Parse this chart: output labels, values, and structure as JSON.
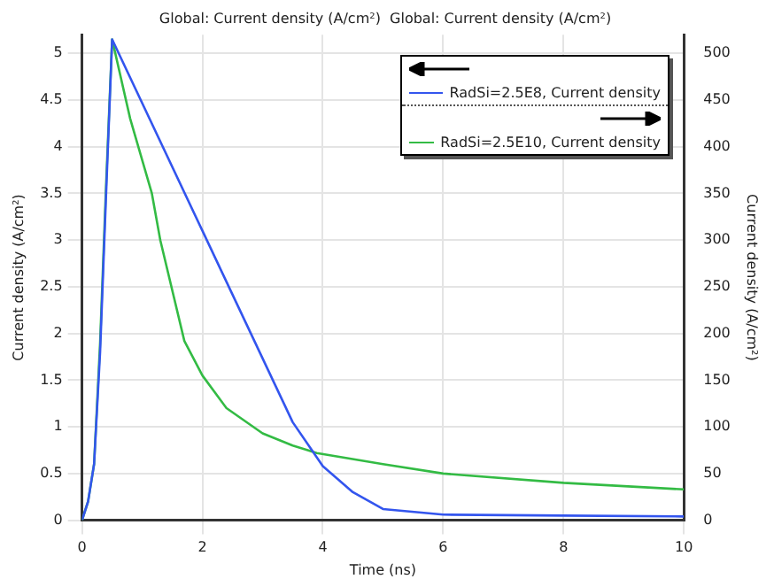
{
  "chart_data": {
    "type": "line",
    "title": "Global: Current density (A/cm²)  Global: Current density (A/cm²)",
    "xlabel": "Time (ns)",
    "ylabel": "Current density (A/cm²)",
    "y2label": "Current density (A/cm²)",
    "xlim": [
      0,
      10
    ],
    "xticks": [
      0,
      2,
      4,
      6,
      8,
      10
    ],
    "ylim": [
      0,
      5.2
    ],
    "yticks": [
      0,
      0.5,
      1,
      1.5,
      2,
      2.5,
      3,
      3.5,
      4,
      4.5,
      5
    ],
    "y2lim": [
      0,
      520
    ],
    "y2ticks": [
      0,
      50,
      100,
      150,
      200,
      250,
      300,
      350,
      400,
      450,
      500
    ],
    "grid": true,
    "legend": "top right",
    "marker": "none",
    "line_style": "solid",
    "series": [
      {
        "name": "RadSi=2.5E8, Current density",
        "color": "#3355ee",
        "axis": "y",
        "x": [
          0,
          0.1,
          0.2,
          0.3,
          0.4,
          0.5,
          2,
          3.5,
          4,
          4.5,
          5,
          6,
          8,
          10
        ],
        "values": [
          0,
          0.2,
          0.6,
          1.8,
          3.5,
          5.15,
          3.1,
          1.05,
          0.58,
          0.3,
          0.12,
          0.06,
          0.05,
          0.04
        ]
      },
      {
        "name": "RadSi=2.5E10, Current density",
        "color": "#33bb44",
        "axis": "y2",
        "x": [
          0,
          0.1,
          0.2,
          0.3,
          0.4,
          0.5,
          0.8,
          1.16,
          1.3,
          1.7,
          2,
          2.4,
          3,
          3.5,
          3.9,
          5,
          6,
          8,
          10
        ],
        "values": [
          0,
          20,
          60,
          190,
          360,
          515,
          430,
          350,
          300,
          192,
          155,
          120,
          93,
          80,
          72,
          60,
          50,
          40,
          33
        ]
      }
    ]
  }
}
